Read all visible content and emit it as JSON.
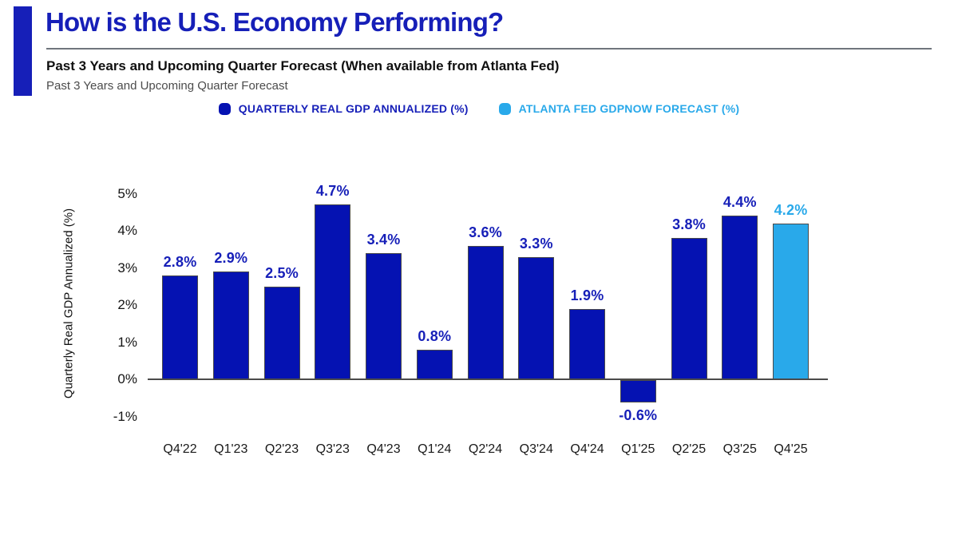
{
  "header": {
    "title": "How is the U.S. Economy Performing?",
    "subtitle": "Past 3 Years and Upcoming Quarter Forecast (When available from Atlanta Fed)",
    "subtitle_secondary": "Past 3 Years and Upcoming Quarter Forecast",
    "accent_color": "#161fb8",
    "rule_color": "#70757d"
  },
  "legend": {
    "items": [
      {
        "label": "QUARTERLY REAL GDP ANNUALIZED (%)",
        "marker_color": "#0512b2",
        "text_color": "#161fb8"
      },
      {
        "label": "ATLANTA FED GDPNOW FORECAST (%)",
        "marker_color": "#29a9ea",
        "text_color": "#29a9ea"
      }
    ]
  },
  "chart_data": {
    "type": "bar",
    "categories": [
      "Q4'22",
      "Q1'23",
      "Q2'23",
      "Q3'23",
      "Q4'23",
      "Q1'24",
      "Q2'24",
      "Q3'24",
      "Q4'24",
      "Q1'25",
      "Q2'25",
      "Q3'25",
      "Q4'25"
    ],
    "values": [
      2.8,
      2.9,
      2.5,
      4.7,
      3.4,
      0.8,
      3.6,
      3.3,
      1.9,
      -0.6,
      3.8,
      4.4,
      4.2
    ],
    "bar_labels": [
      "2.8%",
      "2.9%",
      "2.5%",
      "4.7%",
      "3.4%",
      "0.8%",
      "3.6%",
      "3.3%",
      "1.9%",
      "-0.6%",
      "3.8%",
      "4.4%",
      "4.2%"
    ],
    "forecast_flags": [
      false,
      false,
      false,
      false,
      false,
      false,
      false,
      false,
      false,
      false,
      false,
      false,
      true
    ],
    "series": [
      {
        "name": "Quarterly Real GDP Annualized (%)",
        "color": "#0512b2"
      },
      {
        "name": "Atlanta Fed GDPNow Forecast (%)",
        "color": "#29a9ea"
      }
    ],
    "ylabel": "Quarterly Real GDP Annualized (%)",
    "yticks": [
      {
        "label": "5%",
        "value": 5
      },
      {
        "label": "4%",
        "value": 4
      },
      {
        "label": "3%",
        "value": 3
      },
      {
        "label": "2%",
        "value": 2
      },
      {
        "label": "1%",
        "value": 1
      },
      {
        "label": "0%",
        "value": 0
      },
      {
        "label": "-1%",
        "value": -1
      }
    ],
    "ylim": [
      -1.4,
      5.6
    ],
    "grid": false,
    "legend_position": "top",
    "bar_color": "#0512b2",
    "forecast_color": "#29a9ea",
    "label_color": "#161fb8",
    "forecast_label_color": "#29a9ea",
    "axis_color": "#4a4a4a"
  }
}
